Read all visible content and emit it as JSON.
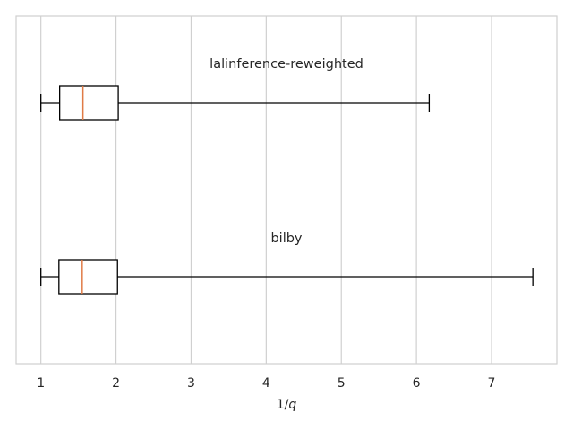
{
  "chart_data": {
    "type": "boxplot",
    "orientation": "horizontal",
    "xlabel": "1/q",
    "xlim": [
      0.67,
      7.87
    ],
    "xticks": [
      1,
      2,
      3,
      4,
      5,
      6,
      7
    ],
    "xtick_labels": [
      "1",
      "2",
      "3",
      "4",
      "5",
      "6",
      "7"
    ],
    "grid": {
      "x": true,
      "y": false
    },
    "colors": {
      "median": "#e07b46",
      "box": "#000000",
      "grid": "#d0d0d0",
      "frame": "#cfcfcf"
    },
    "boxes": [
      {
        "annotation": "lalinference-reweighted",
        "whislo": 1.0,
        "q1": 1.25,
        "med": 1.56,
        "q3": 2.03,
        "whishi": 6.17
      },
      {
        "annotation": "bilby",
        "whislo": 1.0,
        "q1": 1.24,
        "med": 1.55,
        "q3": 2.02,
        "whishi": 7.55
      }
    ]
  }
}
